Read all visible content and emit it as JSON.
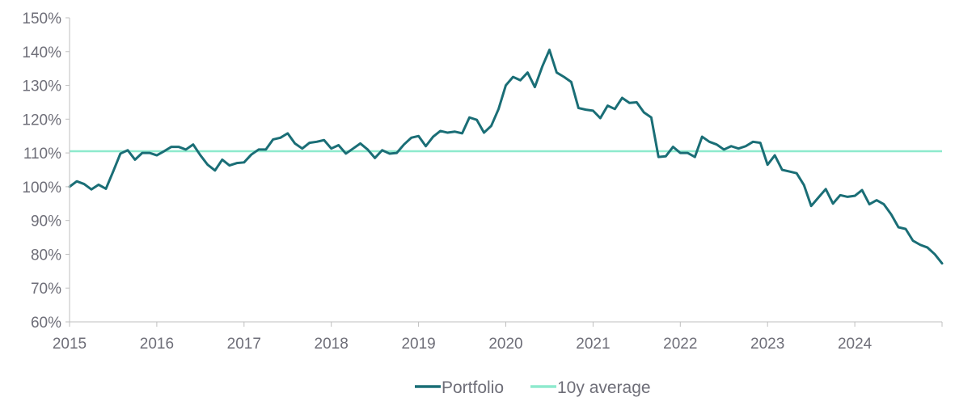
{
  "chart_data": {
    "type": "line",
    "title": "",
    "xlabel": "",
    "ylabel": "",
    "xlim": [
      2015,
      2025
    ],
    "ylim": [
      60,
      150
    ],
    "x_ticks": [
      2015,
      2016,
      2017,
      2018,
      2019,
      2020,
      2021,
      2022,
      2023,
      2024
    ],
    "x_tick_labels": [
      "2015",
      "2016",
      "2017",
      "2018",
      "2019",
      "2020",
      "2021",
      "2022",
      "2023",
      "2024"
    ],
    "y_ticks": [
      60,
      70,
      80,
      90,
      100,
      110,
      120,
      130,
      140,
      150
    ],
    "y_tick_labels": [
      "60%",
      "70%",
      "80%",
      "90%",
      "100%",
      "110%",
      "120%",
      "130%",
      "140%",
      "150%"
    ],
    "grid": false,
    "legend_position": "bottom-center",
    "colors": {
      "portfolio": "#1a6e76",
      "average": "#8eeacd",
      "axis": "#bfbfbf",
      "text": "#6e6e78"
    },
    "series": [
      {
        "name": "Portfolio",
        "x": [
          2015.0,
          2015.083,
          2015.167,
          2015.25,
          2015.333,
          2015.417,
          2015.5,
          2015.583,
          2015.667,
          2015.75,
          2015.833,
          2015.917,
          2016.0,
          2016.083,
          2016.167,
          2016.25,
          2016.333,
          2016.417,
          2016.5,
          2016.583,
          2016.667,
          2016.75,
          2016.833,
          2016.917,
          2017.0,
          2017.083,
          2017.167,
          2017.25,
          2017.333,
          2017.417,
          2017.5,
          2017.583,
          2017.667,
          2017.75,
          2017.833,
          2017.917,
          2018.0,
          2018.083,
          2018.167,
          2018.25,
          2018.333,
          2018.417,
          2018.5,
          2018.583,
          2018.667,
          2018.75,
          2018.833,
          2018.917,
          2019.0,
          2019.083,
          2019.167,
          2019.25,
          2019.333,
          2019.417,
          2019.5,
          2019.583,
          2019.667,
          2019.75,
          2019.833,
          2019.917,
          2020.0,
          2020.083,
          2020.167,
          2020.25,
          2020.333,
          2020.417,
          2020.5,
          2020.583,
          2020.667,
          2020.75,
          2020.833,
          2020.917,
          2021.0,
          2021.083,
          2021.167,
          2021.25,
          2021.333,
          2021.417,
          2021.5,
          2021.583,
          2021.667,
          2021.75,
          2021.833,
          2021.917,
          2022.0,
          2022.083,
          2022.167,
          2022.25,
          2022.333,
          2022.417,
          2022.5,
          2022.583,
          2022.667,
          2022.75,
          2022.833,
          2022.917,
          2023.0,
          2023.083,
          2023.167,
          2023.25,
          2023.333,
          2023.417,
          2023.5,
          2023.583,
          2023.667,
          2023.75,
          2023.833,
          2023.917,
          2024.0,
          2024.083,
          2024.167,
          2024.25,
          2024.333,
          2024.417,
          2024.5,
          2024.583,
          2024.667,
          2024.75,
          2024.833,
          2024.917,
          2025.0
        ],
        "values": [
          100.0,
          101.6,
          100.8,
          99.2,
          100.6,
          99.4,
          104.5,
          109.8,
          110.8,
          108.0,
          110.0,
          110.0,
          109.3,
          110.5,
          111.8,
          111.8,
          111.0,
          112.5,
          109.3,
          106.5,
          104.8,
          108.0,
          106.3,
          107.0,
          107.2,
          109.5,
          111.0,
          111.0,
          114.0,
          114.5,
          115.8,
          112.8,
          111.3,
          113.0,
          113.3,
          113.8,
          111.3,
          112.3,
          109.8,
          111.3,
          112.8,
          111.0,
          108.5,
          110.8,
          109.8,
          110.0,
          112.5,
          114.5,
          115.0,
          112.0,
          114.8,
          116.5,
          116.0,
          116.3,
          115.8,
          120.5,
          119.8,
          116.0,
          118.0,
          123.0,
          130.0,
          132.5,
          131.5,
          133.8,
          129.5,
          135.5,
          140.5,
          133.8,
          132.5,
          131.0,
          123.3,
          122.8,
          122.5,
          120.3,
          124.0,
          123.0,
          126.3,
          124.8,
          125.0,
          122.0,
          120.5,
          108.8,
          109.0,
          111.8,
          110.0,
          110.0,
          108.8,
          114.8,
          113.3,
          112.5,
          111.0,
          112.0,
          111.3,
          112.0,
          113.3,
          113.0,
          106.5,
          109.3,
          105.0,
          104.5,
          104.0,
          100.5,
          94.3,
          96.8,
          99.3,
          95.0,
          97.5,
          97.0,
          97.3,
          99.0,
          94.8,
          96.0,
          94.8,
          91.8,
          88.0,
          87.5,
          84.0,
          82.8,
          82.0,
          80.0,
          77.3
        ]
      },
      {
        "name": "10y average",
        "x": [
          2015.0,
          2025.0
        ],
        "values": [
          110.5,
          110.5
        ]
      }
    ]
  }
}
